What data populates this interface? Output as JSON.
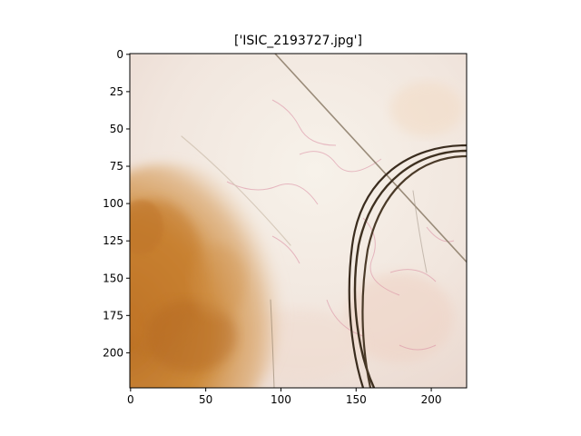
{
  "figure": {
    "title": "['ISIC_2193727.jpg']",
    "image_subject": "dermoscopic skin lesion image with hair strands"
  },
  "axes": {
    "x_range": [
      0,
      224
    ],
    "y_range": [
      0,
      224
    ],
    "y_inverted": true,
    "x_ticks": [
      {
        "value": 0,
        "label": "0"
      },
      {
        "value": 50,
        "label": "50"
      },
      {
        "value": 100,
        "label": "100"
      },
      {
        "value": 150,
        "label": "150"
      },
      {
        "value": 200,
        "label": "200"
      }
    ],
    "y_ticks": [
      {
        "value": 0,
        "label": "0"
      },
      {
        "value": 25,
        "label": "25"
      },
      {
        "value": 50,
        "label": "50"
      },
      {
        "value": 75,
        "label": "75"
      },
      {
        "value": 100,
        "label": "100"
      },
      {
        "value": 125,
        "label": "125"
      },
      {
        "value": 150,
        "label": "150"
      },
      {
        "value": 175,
        "label": "175"
      },
      {
        "value": 200,
        "label": "200"
      }
    ],
    "frame_color": "#000000"
  },
  "colors": {
    "skin_base": "#f0e4dc",
    "skin_light": "#f6f0e8",
    "lesion": "#c8832e",
    "lesion_dark": "#a55f1f",
    "hair": "#4a3a28",
    "vessel": "#d98aa0"
  }
}
